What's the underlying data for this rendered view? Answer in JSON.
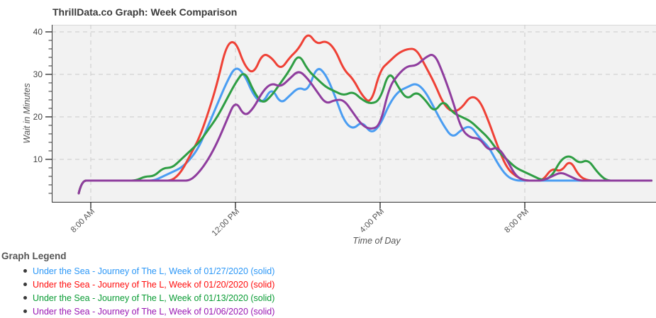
{
  "header": {
    "title": "ThrillData.co Graph: Week Comparison"
  },
  "chart_data": {
    "type": "line",
    "title": "ThrillData.co Graph: Week Comparison",
    "xlabel": "Time of Day",
    "ylabel": "Wait in Minutes",
    "ylim": [
      0,
      42
    ],
    "y_ticks": [
      10,
      20,
      30,
      40
    ],
    "y_minor_tick_step": 2,
    "x_ticks": [
      {
        "label": "8:00 AM",
        "hour": 8
      },
      {
        "label": "12:00 PM",
        "hour": 12
      },
      {
        "label": "4:00 PM",
        "hour": 16
      },
      {
        "label": "8:00 PM",
        "hour": 20
      }
    ],
    "grid": "dashed",
    "legend_position": "below",
    "x": [
      "7:40",
      "7:45",
      "8:00",
      "8:15",
      "8:30",
      "8:45",
      "9:00",
      "9:15",
      "9:30",
      "9:45",
      "10:00",
      "10:15",
      "10:30",
      "10:45",
      "11:00",
      "11:15",
      "11:30",
      "11:45",
      "12:00",
      "12:15",
      "12:30",
      "12:45",
      "13:00",
      "13:15",
      "13:30",
      "13:45",
      "14:00",
      "14:15",
      "14:30",
      "14:45",
      "15:00",
      "15:15",
      "15:30",
      "15:45",
      "16:00",
      "16:15",
      "16:30",
      "16:45",
      "17:00",
      "17:15",
      "17:30",
      "17:45",
      "18:00",
      "18:15",
      "18:30",
      "18:45",
      "19:00",
      "19:15",
      "19:30",
      "19:45",
      "20:00",
      "20:15",
      "20:30",
      "20:45",
      "21:00",
      "21:15",
      "21:30",
      "21:45",
      "22:00",
      "22:15",
      "22:30",
      "22:45",
      "23:00",
      "23:15",
      "23:30"
    ],
    "series": [
      {
        "name": "Under the Sea - Journey of The L, Week of 01/27/2020 (solid)",
        "color": "#4A9DF2",
        "style": "solid",
        "values": [
          2,
          5,
          5,
          5,
          5,
          5,
          5,
          5,
          5,
          5,
          6,
          7,
          8,
          10,
          13,
          18,
          23,
          28,
          32,
          30,
          25,
          23,
          27,
          23,
          25,
          27,
          26,
          32,
          30,
          25,
          19,
          17,
          19,
          16,
          18,
          23,
          26,
          27,
          28,
          26,
          22,
          18,
          15,
          17,
          18,
          15,
          13,
          9,
          6,
          5,
          5,
          5,
          5,
          5,
          5,
          5,
          5,
          5,
          5,
          5,
          5,
          5,
          5,
          5,
          5
        ]
      },
      {
        "name": "Under the Sea - Journey of The L, Week of 01/20/2020 (solid)",
        "color": "#EF4136",
        "style": "solid",
        "values": [
          2,
          5,
          5,
          5,
          5,
          5,
          5,
          5,
          5,
          5,
          5,
          5,
          7,
          11,
          15,
          21,
          28,
          37,
          38,
          32,
          30,
          35,
          34,
          31,
          34,
          36,
          40,
          37,
          38,
          36,
          31,
          29,
          25,
          23,
          31,
          33,
          35,
          36,
          36,
          32,
          28,
          23,
          21,
          22,
          25,
          24,
          19,
          13,
          8,
          6,
          5,
          5,
          5,
          8,
          7,
          10,
          6,
          5,
          5,
          5,
          5,
          5,
          5,
          5,
          5
        ]
      },
      {
        "name": "Under the Sea - Journey of The L, Week of 01/13/2020 (solid)",
        "color": "#2F9E44",
        "style": "solid",
        "values": [
          2,
          5,
          5,
          5,
          5,
          5,
          5,
          5,
          6,
          6,
          8,
          8,
          10,
          12,
          14,
          17,
          20,
          24,
          28,
          31,
          26,
          23,
          25,
          28,
          31,
          35,
          31,
          29,
          27,
          26,
          25,
          26,
          24,
          23,
          24,
          31,
          27,
          24,
          26,
          24,
          21,
          24,
          21,
          20,
          19,
          17,
          15,
          12,
          10,
          8,
          7,
          6,
          5,
          6,
          10,
          11,
          9,
          10,
          7,
          5,
          5,
          5,
          5,
          5,
          5
        ]
      },
      {
        "name": "Under the Sea - Journey of The L, Week of 01/06/2020 (solid)",
        "color": "#8F3D9E",
        "style": "solid",
        "values": [
          2,
          5,
          5,
          5,
          5,
          5,
          5,
          5,
          5,
          5,
          5,
          5,
          5,
          5,
          7,
          10,
          14,
          19,
          24,
          20,
          22,
          26,
          28,
          27,
          29,
          31,
          29,
          26,
          23,
          24,
          24,
          21,
          18,
          17,
          18,
          27,
          30,
          32,
          32,
          34,
          35,
          30,
          24,
          17,
          15,
          15,
          12,
          13,
          10,
          6,
          5,
          5,
          5,
          6,
          7,
          6,
          5,
          5,
          5,
          5,
          5,
          5,
          5,
          5,
          5
        ]
      }
    ]
  },
  "legend": {
    "heading": "Graph Legend",
    "items": [
      {
        "label": "Under the Sea - Journey of The L, Week of 01/27/2020 (solid)",
        "color": "#2B97F7"
      },
      {
        "label": "Under the Sea - Journey of The L, Week of 01/20/2020 (solid)",
        "color": "#FF0D0D"
      },
      {
        "label": "Under the Sea - Journey of The L, Week of 01/13/2020 (solid)",
        "color": "#089B33"
      },
      {
        "label": "Under the Sea - Journey of The L, Week of 01/06/2020 (solid)",
        "color": "#9917B3"
      }
    ]
  },
  "colors": {
    "plot_background": "#f2f2f2",
    "plot_top_border": "#d8d8d8",
    "gridline": "#cbcbcb",
    "axis": "#333333",
    "tick_label": "#444444",
    "axis_title": "#555555",
    "title": "#3a3a3a"
  }
}
